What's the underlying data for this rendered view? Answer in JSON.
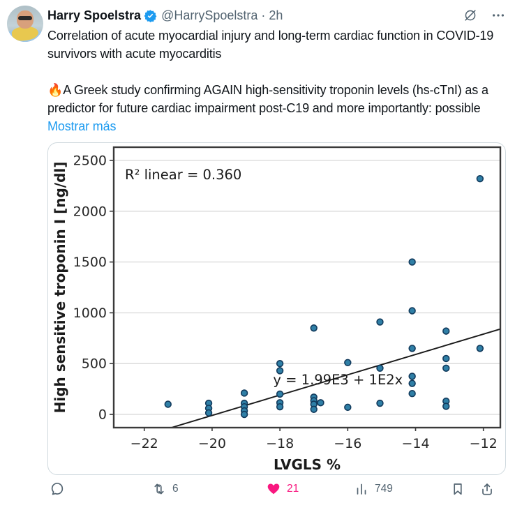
{
  "post": {
    "author": "Harry Spoelstra",
    "handle": "@HarrySpoelstra",
    "separator": "·",
    "time": "2h",
    "body1": "Correlation of acute myocardial injury and long-term cardiac function in COVID-19 survivors with acute myocarditis",
    "fire_emoji": "🔥",
    "body2": "A Greek study confirming AGAIN high-sensitivity troponin levels (hs-cTnI) as a predictor for future cardiac impairment post-C19 and more importantly: possible",
    "show_more": "Mostrar más"
  },
  "actions": {
    "retweet_count": "6",
    "like_count": "21",
    "views_count": "749"
  },
  "colors": {
    "accent_blue": "#1d9bf0",
    "like_pink": "#f91880",
    "secondary_gray": "#536471",
    "text_black": "#0f1419",
    "point_fill": "#2f7fa6",
    "point_stroke": "#123a5c"
  },
  "chart_data": {
    "type": "scatter",
    "title": "",
    "xlabel": "LVGLS %",
    "ylabel": "High sensitive troponin I [ng/dl]",
    "xlim": [
      -22.9,
      -11.5
    ],
    "ylim": [
      -130,
      2630
    ],
    "xticks": [
      -22,
      -20,
      -18,
      -16,
      -14,
      -12
    ],
    "yticks": [
      0,
      500,
      1000,
      1500,
      2000,
      2500
    ],
    "grid": "horizontal",
    "legend": "none",
    "annotations": [
      {
        "text": "R² linear = 0.360",
        "x": -22.57,
        "y": 2315
      },
      {
        "text": "y = 1.99E3 + 1E2x",
        "x": -18.2,
        "y": 295
      }
    ],
    "regression_line": {
      "intercept": 1990,
      "slope": 100
    },
    "points": [
      [
        -21.3,
        100
      ],
      [
        -20.1,
        110
      ],
      [
        -20.1,
        60
      ],
      [
        -20.1,
        15
      ],
      [
        -19.05,
        210
      ],
      [
        -19.05,
        110
      ],
      [
        -19.05,
        75
      ],
      [
        -19.05,
        35
      ],
      [
        -19.05,
        0
      ],
      [
        -18.0,
        500
      ],
      [
        -18.0,
        430
      ],
      [
        -18.0,
        200
      ],
      [
        -18.0,
        115
      ],
      [
        -18.0,
        75
      ],
      [
        -17.0,
        850
      ],
      [
        -17.0,
        170
      ],
      [
        -17.0,
        135
      ],
      [
        -17.0,
        100
      ],
      [
        -17.0,
        50
      ],
      [
        -16.8,
        115
      ],
      [
        -16.0,
        510
      ],
      [
        -16.0,
        70
      ],
      [
        -15.05,
        910
      ],
      [
        -15.05,
        455
      ],
      [
        -15.05,
        110
      ],
      [
        -14.1,
        1500
      ],
      [
        -14.1,
        1020
      ],
      [
        -14.1,
        650
      ],
      [
        -14.1,
        375
      ],
      [
        -14.1,
        305
      ],
      [
        -14.1,
        205
      ],
      [
        -13.1,
        820
      ],
      [
        -13.1,
        550
      ],
      [
        -13.1,
        455
      ],
      [
        -13.1,
        130
      ],
      [
        -13.1,
        80
      ],
      [
        -12.1,
        2320
      ],
      [
        -12.1,
        650
      ]
    ]
  }
}
